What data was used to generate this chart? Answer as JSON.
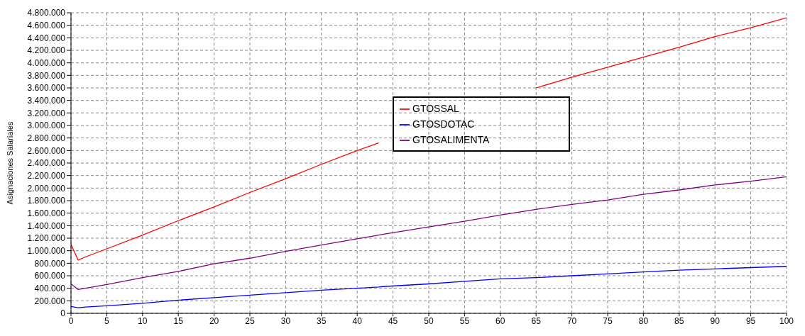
{
  "chart_data": {
    "type": "line",
    "ylabel": "Asignaciones Salariales",
    "x": [
      0,
      1,
      2,
      5,
      10,
      15,
      20,
      25,
      30,
      35,
      40,
      43,
      44,
      50,
      55,
      60,
      65,
      70,
      75,
      80,
      85,
      90,
      95,
      100
    ],
    "series": [
      {
        "name": "GTOSSAL",
        "color": "#ff0000",
        "values": [
          1100000,
          850000,
          900000,
          1030000,
          1250000,
          1480000,
          1700000,
          1930000,
          2150000,
          2380000,
          2600000,
          2720000,
          null,
          null,
          null,
          null,
          3600000,
          3770000,
          3930000,
          4090000,
          4250000,
          4420000,
          4560000,
          4720000
        ]
      },
      {
        "name": "GTOSDOTAC",
        "color": "#0000ff",
        "values": [
          110000,
          90000,
          100000,
          120000,
          160000,
          210000,
          250000,
          290000,
          330000,
          370000,
          400000,
          420000,
          430000,
          470000,
          510000,
          550000,
          570000,
          600000,
          630000,
          660000,
          690000,
          710000,
          730000,
          750000
        ]
      },
      {
        "name": "GTOSALIMENTA",
        "color": "#800080",
        "values": [
          470000,
          380000,
          400000,
          460000,
          570000,
          670000,
          790000,
          880000,
          990000,
          1090000,
          1190000,
          1250000,
          1270000,
          1380000,
          1470000,
          1570000,
          1660000,
          1740000,
          1810000,
          1900000,
          1970000,
          2050000,
          2110000,
          2180000
        ]
      }
    ],
    "xlim": [
      0,
      100
    ],
    "xticks": [
      0,
      5,
      10,
      15,
      20,
      25,
      30,
      35,
      40,
      45,
      50,
      55,
      60,
      65,
      70,
      75,
      80,
      85,
      90,
      95,
      100
    ],
    "ylim": [
      0,
      4800000
    ],
    "yticks": [
      {
        "value": 0,
        "label": "0"
      },
      {
        "value": 200000,
        "label": "200.000"
      },
      {
        "value": 400000,
        "label": "400.000"
      },
      {
        "value": 600000,
        "label": "600.000"
      },
      {
        "value": 800000,
        "label": "800.000"
      },
      {
        "value": 1000000,
        "label": "1.000.000"
      },
      {
        "value": 1200000,
        "label": "1.200.000"
      },
      {
        "value": 1400000,
        "label": "1.400.000"
      },
      {
        "value": 1600000,
        "label": "1.600.000"
      },
      {
        "value": 1800000,
        "label": "1.800.000"
      },
      {
        "value": 2000000,
        "label": "2.000.000"
      },
      {
        "value": 2200000,
        "label": "2.200.000"
      },
      {
        "value": 2400000,
        "label": "2.400.000"
      },
      {
        "value": 2600000,
        "label": "2.600.000"
      },
      {
        "value": 2800000,
        "label": "2.800.000"
      },
      {
        "value": 3000000,
        "label": "3.000.000"
      },
      {
        "value": 3200000,
        "label": "3.200.000"
      },
      {
        "value": 3400000,
        "label": "3.400.000"
      },
      {
        "value": 3600000,
        "label": "3.600.000"
      },
      {
        "value": 3800000,
        "label": "3.800.000"
      },
      {
        "value": 4000000,
        "label": "4.000.000"
      },
      {
        "value": 4200000,
        "label": "4.200.000"
      },
      {
        "value": 4400000,
        "label": "4.400.000"
      },
      {
        "value": 4600000,
        "label": "4.600.000"
      },
      {
        "value": 4800000,
        "label": "4.800.000"
      }
    ],
    "grid": true,
    "legend": "top",
    "marker": "none",
    "line_style": "solid"
  }
}
